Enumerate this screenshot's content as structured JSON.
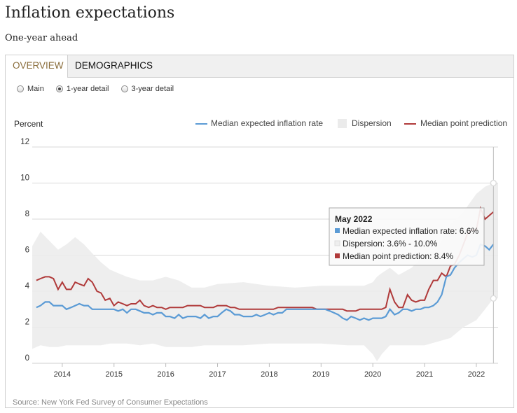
{
  "page": {
    "title": "Inflation expectations",
    "subtitle": "One-year ahead",
    "source": "Source: New York Fed Survey of Consumer Expectations"
  },
  "tabs": [
    {
      "label": "OVERVIEW",
      "active": true
    },
    {
      "label": "DEMOGRAPHICS",
      "active": false
    }
  ],
  "radios": [
    {
      "label": "Main",
      "selected": false
    },
    {
      "label": "1-year detail",
      "selected": true
    },
    {
      "label": "3-year detail",
      "selected": false
    }
  ],
  "tooltip": {
    "date": "May 2022",
    "lines": [
      "Median expected inflation rate: 6.6%",
      "Dispersion: 3.6% - 10.0%",
      "Median point prediction: 8.4%"
    ]
  },
  "chart_data": {
    "type": "line",
    "ylabel": "Percent",
    "ylim": [
      0,
      12
    ],
    "yticks": [
      0,
      2,
      4,
      6,
      8,
      10,
      12
    ],
    "xlim": [
      2013.42,
      2022.42
    ],
    "xticks": [
      2014,
      2015,
      2016,
      2017,
      2018,
      2019,
      2020,
      2021,
      2022
    ],
    "grid": true,
    "legend_position": "top-right",
    "colors": {
      "median": "#5b9bd5",
      "dispersion": "#ebebeb",
      "point": "#b03a3a"
    },
    "legend": [
      {
        "label": "Median expected inflation rate",
        "kind": "line",
        "color": "#5b9bd5"
      },
      {
        "label": "Dispersion",
        "kind": "band",
        "color": "#ebebeb"
      },
      {
        "label": "Median point prediction",
        "kind": "line",
        "color": "#b03a3a"
      }
    ],
    "series": [
      {
        "name": "Median expected inflation rate",
        "x": [
          2013.5,
          2013.58,
          2013.67,
          2013.75,
          2013.83,
          2013.92,
          2014.0,
          2014.08,
          2014.17,
          2014.25,
          2014.33,
          2014.42,
          2014.5,
          2014.58,
          2014.67,
          2014.75,
          2014.83,
          2014.92,
          2015.0,
          2015.08,
          2015.17,
          2015.25,
          2015.33,
          2015.42,
          2015.5,
          2015.58,
          2015.67,
          2015.75,
          2015.83,
          2015.92,
          2016.0,
          2016.08,
          2016.17,
          2016.25,
          2016.33,
          2016.42,
          2016.5,
          2016.58,
          2016.67,
          2016.75,
          2016.83,
          2016.92,
          2017.0,
          2017.08,
          2017.17,
          2017.25,
          2017.33,
          2017.42,
          2017.5,
          2017.58,
          2017.67,
          2017.75,
          2017.83,
          2017.92,
          2018.0,
          2018.08,
          2018.17,
          2018.25,
          2018.33,
          2018.42,
          2018.5,
          2018.58,
          2018.67,
          2018.75,
          2018.83,
          2018.92,
          2019.0,
          2019.08,
          2019.17,
          2019.25,
          2019.33,
          2019.42,
          2019.5,
          2019.58,
          2019.67,
          2019.75,
          2019.83,
          2019.92,
          2020.0,
          2020.08,
          2020.17,
          2020.25,
          2020.33,
          2020.42,
          2020.5,
          2020.58,
          2020.67,
          2020.75,
          2020.83,
          2020.92,
          2021.0,
          2021.08,
          2021.17,
          2021.25,
          2021.33,
          2021.42,
          2021.5,
          2021.58,
          2021.67,
          2021.75,
          2021.83,
          2021.92,
          2022.0,
          2022.08,
          2022.17,
          2022.25,
          2022.33
        ],
        "values": [
          3.1,
          3.2,
          3.4,
          3.4,
          3.2,
          3.2,
          3.2,
          3.0,
          3.1,
          3.2,
          3.3,
          3.2,
          3.2,
          3.0,
          3.0,
          3.0,
          3.0,
          3.0,
          3.0,
          2.9,
          3.0,
          2.8,
          3.0,
          3.0,
          2.9,
          2.8,
          2.8,
          2.7,
          2.8,
          2.8,
          2.6,
          2.6,
          2.5,
          2.7,
          2.5,
          2.6,
          2.6,
          2.6,
          2.5,
          2.7,
          2.5,
          2.6,
          2.6,
          2.8,
          3.0,
          2.9,
          2.7,
          2.7,
          2.6,
          2.6,
          2.6,
          2.7,
          2.6,
          2.7,
          2.8,
          2.7,
          2.8,
          2.8,
          3.0,
          3.0,
          3.0,
          3.0,
          3.0,
          3.0,
          3.0,
          3.0,
          3.0,
          3.0,
          2.9,
          2.8,
          2.7,
          2.5,
          2.4,
          2.6,
          2.5,
          2.4,
          2.5,
          2.4,
          2.5,
          2.5,
          2.5,
          2.6,
          3.0,
          2.7,
          2.8,
          3.0,
          3.0,
          2.9,
          3.0,
          3.0,
          3.1,
          3.1,
          3.2,
          3.4,
          3.8,
          4.8,
          4.9,
          5.3,
          5.6,
          5.8,
          6.0,
          5.9,
          6.0,
          6.6,
          6.5,
          6.3,
          6.6
        ]
      },
      {
        "name": "Median point prediction",
        "x": [
          2013.5,
          2013.58,
          2013.67,
          2013.75,
          2013.83,
          2013.92,
          2014.0,
          2014.08,
          2014.17,
          2014.25,
          2014.33,
          2014.42,
          2014.5,
          2014.58,
          2014.67,
          2014.75,
          2014.83,
          2014.92,
          2015.0,
          2015.08,
          2015.17,
          2015.25,
          2015.33,
          2015.42,
          2015.5,
          2015.58,
          2015.67,
          2015.75,
          2015.83,
          2015.92,
          2016.0,
          2016.08,
          2016.17,
          2016.25,
          2016.33,
          2016.42,
          2016.5,
          2016.58,
          2016.67,
          2016.75,
          2016.83,
          2016.92,
          2017.0,
          2017.08,
          2017.17,
          2017.25,
          2017.33,
          2017.42,
          2017.5,
          2017.58,
          2017.67,
          2017.75,
          2017.83,
          2017.92,
          2018.0,
          2018.08,
          2018.17,
          2018.25,
          2018.33,
          2018.42,
          2018.5,
          2018.58,
          2018.67,
          2018.75,
          2018.83,
          2018.92,
          2019.0,
          2019.08,
          2019.17,
          2019.25,
          2019.33,
          2019.42,
          2019.5,
          2019.58,
          2019.67,
          2019.75,
          2019.83,
          2019.92,
          2020.0,
          2020.08,
          2020.17,
          2020.25,
          2020.33,
          2020.42,
          2020.5,
          2020.58,
          2020.67,
          2020.75,
          2020.83,
          2020.92,
          2021.0,
          2021.08,
          2021.17,
          2021.25,
          2021.33,
          2021.42,
          2021.5,
          2021.58,
          2021.67,
          2021.75,
          2021.83,
          2021.92,
          2022.0,
          2022.08,
          2022.17,
          2022.25,
          2022.33
        ],
        "values": [
          4.6,
          4.7,
          4.8,
          4.8,
          4.7,
          4.1,
          4.5,
          4.1,
          4.1,
          4.5,
          4.4,
          4.3,
          4.7,
          4.5,
          4.0,
          3.9,
          3.5,
          3.6,
          3.2,
          3.4,
          3.3,
          3.2,
          3.3,
          3.3,
          3.5,
          3.2,
          3.1,
          3.2,
          3.1,
          3.1,
          3.0,
          3.1,
          3.1,
          3.1,
          3.1,
          3.2,
          3.2,
          3.2,
          3.2,
          3.1,
          3.1,
          3.1,
          3.2,
          3.2,
          3.2,
          3.1,
          3.1,
          3.0,
          3.0,
          3.0,
          3.0,
          3.0,
          3.0,
          3.0,
          3.0,
          3.0,
          3.1,
          3.1,
          3.1,
          3.1,
          3.1,
          3.1,
          3.1,
          3.1,
          3.1,
          3.0,
          3.0,
          3.0,
          3.0,
          3.0,
          3.0,
          3.0,
          2.9,
          2.9,
          2.9,
          3.0,
          3.0,
          3.0,
          3.0,
          3.0,
          3.0,
          3.1,
          4.1,
          3.4,
          3.1,
          3.1,
          3.8,
          3.5,
          3.4,
          3.5,
          3.5,
          4.1,
          4.6,
          4.6,
          5.0,
          4.8,
          5.4,
          5.5,
          6.0,
          6.6,
          7.2,
          7.4,
          7.4,
          8.6,
          8.0,
          8.2,
          8.4
        ]
      }
    ],
    "dispersion": {
      "x": [
        2013.42,
        2013.58,
        2013.75,
        2013.92,
        2014.08,
        2014.25,
        2014.42,
        2014.58,
        2014.75,
        2014.92,
        2015.08,
        2015.25,
        2015.5,
        2015.75,
        2016.0,
        2016.25,
        2016.5,
        2016.75,
        2017.0,
        2017.5,
        2018.0,
        2018.5,
        2019.0,
        2019.5,
        2019.83,
        2020.0,
        2020.08,
        2020.17,
        2020.33,
        2020.5,
        2020.75,
        2021.0,
        2021.25,
        2021.5,
        2021.75,
        2022.0,
        2022.17,
        2022.33,
        2022.42
      ],
      "lower": [
        0.8,
        1.0,
        0.9,
        0.9,
        1.0,
        1.0,
        1.0,
        1.0,
        1.0,
        1.1,
        1.1,
        1.1,
        1.0,
        1.1,
        0.9,
        0.9,
        0.9,
        1.0,
        1.0,
        1.0,
        1.1,
        1.1,
        1.1,
        1.0,
        1.0,
        0.5,
        0.1,
        0.5,
        1.0,
        1.0,
        1.0,
        1.0,
        1.2,
        1.4,
        2.0,
        2.4,
        3.0,
        3.6,
        3.6
      ],
      "upper": [
        6.5,
        7.3,
        6.8,
        6.3,
        6.6,
        7.0,
        6.6,
        6.1,
        5.6,
        5.2,
        5.0,
        4.8,
        4.6,
        4.6,
        4.8,
        4.6,
        4.2,
        4.2,
        4.4,
        4.5,
        4.3,
        4.2,
        4.3,
        4.3,
        4.3,
        4.5,
        4.8,
        5.0,
        5.3,
        4.9,
        5.3,
        6.0,
        6.4,
        7.7,
        8.4,
        9.4,
        9.8,
        10.0,
        10.0
      ]
    },
    "highlight": {
      "x": 2022.33,
      "median": 6.6,
      "lower": 3.6,
      "upper": 10.0,
      "point": 8.4
    }
  }
}
